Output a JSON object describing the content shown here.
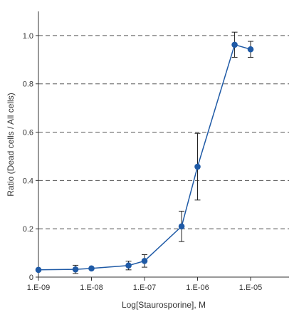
{
  "chart_data": {
    "type": "line",
    "xlabel": "Log[Staurosporine], M",
    "ylabel": "Ratio (Dead cells / All cells)",
    "xscale": "log",
    "xlim": [
      1e-09,
      1e-05
    ],
    "ylim": [
      0,
      1.1
    ],
    "grid": "horizontal dashed",
    "x_ticks": [
      {
        "value": 1e-09,
        "label": "1.E-09"
      },
      {
        "value": 1e-08,
        "label": "1.E-08"
      },
      {
        "value": 1e-07,
        "label": "1.E-07"
      },
      {
        "value": 1e-06,
        "label": "1.E-06"
      },
      {
        "value": 1e-05,
        "label": "1.E-05"
      }
    ],
    "y_ticks": [
      {
        "value": 0,
        "label": "0"
      },
      {
        "value": 0.2,
        "label": "0.2"
      },
      {
        "value": 0.4,
        "label": "0.4"
      },
      {
        "value": 0.6,
        "label": "0.6"
      },
      {
        "value": 0.8,
        "label": "0.8"
      },
      {
        "value": 1.0,
        "label": "1.0"
      }
    ],
    "series": [
      {
        "color": "#1f5aa6",
        "points": [
          {
            "x": 1e-09,
            "y": 0.03,
            "err": 0.0
          },
          {
            "x": 5e-09,
            "y": 0.032,
            "err": 0.017
          },
          {
            "x": 1e-08,
            "y": 0.036,
            "err": 0.0
          },
          {
            "x": 5e-08,
            "y": 0.048,
            "err": 0.018
          },
          {
            "x": 1e-07,
            "y": 0.067,
            "err": 0.026
          },
          {
            "x": 5e-07,
            "y": 0.21,
            "err": 0.063
          },
          {
            "x": 1e-06,
            "y": 0.457,
            "err": 0.138
          },
          {
            "x": 5e-06,
            "y": 0.962,
            "err": 0.052
          },
          {
            "x": 1e-05,
            "y": 0.943,
            "err": 0.033
          }
        ]
      }
    ]
  }
}
